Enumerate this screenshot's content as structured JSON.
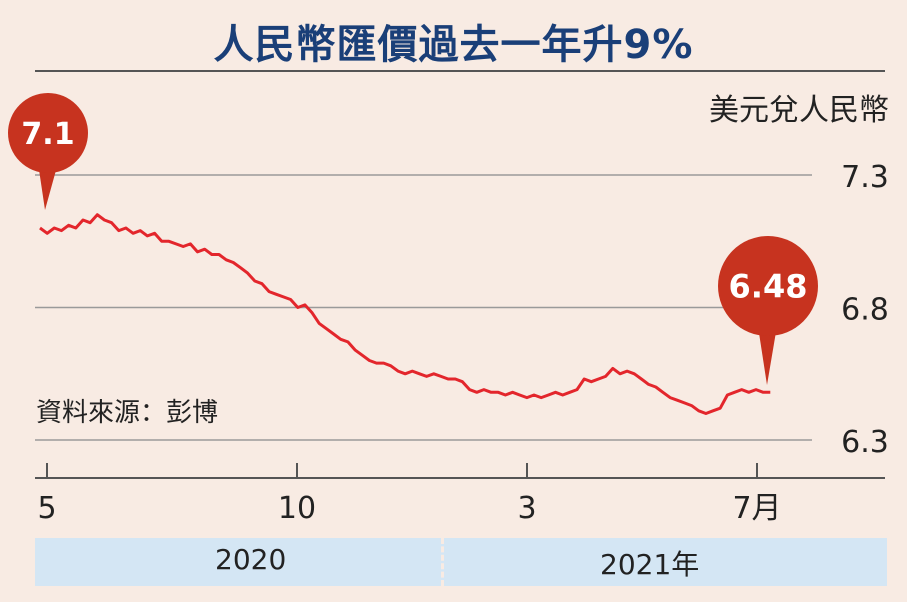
{
  "title": "人民幣匯價過去一年升9%",
  "unit_label": "美元兌人民幣",
  "source": "資料來源：彭博",
  "years": [
    "2020",
    "2021年"
  ],
  "colors": {
    "line": "#e3262c",
    "bubble": "#c7331f",
    "title": "#1a3f78",
    "band": "#d4e6f4"
  },
  "chart_data": {
    "type": "line",
    "title": "人民幣匯價過去一年升9%",
    "ylabel": "美元兌人民幣",
    "ylim": [
      6.3,
      7.3
    ],
    "yticks": [
      "7.3",
      "6.8",
      "6.3"
    ],
    "xticks": [
      "5",
      "10",
      "3",
      "7月"
    ],
    "xlim": [
      0,
      14.3
    ],
    "grid": true,
    "annotations": [
      {
        "label": "7.1",
        "x": 0,
        "y": 7.1
      },
      {
        "label": "6.48",
        "x": 10.2,
        "y": 6.48
      }
    ],
    "series": [
      {
        "x": [
          0,
          0.1,
          0.2,
          0.3,
          0.4,
          0.5,
          0.6,
          0.7,
          0.8,
          0.9,
          1.0,
          1.1,
          1.2,
          1.3,
          1.4,
          1.5,
          1.6,
          1.7,
          1.8,
          1.9,
          2.0,
          2.1,
          2.2,
          2.3,
          2.4,
          2.5,
          2.6,
          2.7,
          2.8,
          2.9,
          3.0,
          3.1,
          3.2,
          3.3,
          3.4,
          3.5,
          3.6,
          3.7,
          3.8,
          3.9,
          4.0,
          4.1,
          4.2,
          4.3,
          4.4,
          4.5,
          4.6,
          4.7,
          4.8,
          4.9,
          5.0,
          5.1,
          5.2,
          5.3,
          5.4,
          5.5,
          5.6,
          5.7,
          5.8,
          5.9,
          6.0,
          6.1,
          6.2,
          6.3,
          6.4,
          6.5,
          6.6,
          6.7,
          6.8,
          6.9,
          7.0,
          7.1,
          7.2,
          7.3,
          7.4,
          7.5,
          7.6,
          7.7,
          7.8,
          7.9,
          8.0,
          8.1,
          8.2,
          8.3,
          8.4,
          8.5,
          8.6,
          8.7,
          8.8,
          8.9,
          9.0,
          9.1,
          9.2,
          9.3,
          9.4,
          9.5,
          9.6,
          9.7,
          9.8,
          9.9,
          10.0,
          10.1,
          10.2
        ],
        "y": [
          7.1,
          7.08,
          7.1,
          7.09,
          7.11,
          7.1,
          7.13,
          7.12,
          7.15,
          7.13,
          7.12,
          7.09,
          7.1,
          7.08,
          7.09,
          7.07,
          7.08,
          7.05,
          7.05,
          7.04,
          7.03,
          7.04,
          7.01,
          7.02,
          7.0,
          7.0,
          6.98,
          6.97,
          6.95,
          6.93,
          6.9,
          6.89,
          6.86,
          6.85,
          6.84,
          6.83,
          6.8,
          6.81,
          6.78,
          6.74,
          6.72,
          6.7,
          6.68,
          6.67,
          6.64,
          6.62,
          6.6,
          6.59,
          6.59,
          6.58,
          6.56,
          6.55,
          6.56,
          6.55,
          6.54,
          6.55,
          6.54,
          6.53,
          6.53,
          6.52,
          6.49,
          6.48,
          6.49,
          6.48,
          6.48,
          6.47,
          6.48,
          6.47,
          6.46,
          6.47,
          6.46,
          6.47,
          6.48,
          6.47,
          6.48,
          6.49,
          6.53,
          6.52,
          6.53,
          6.54,
          6.57,
          6.55,
          6.56,
          6.55,
          6.53,
          6.51,
          6.5,
          6.48,
          6.46,
          6.45,
          6.44,
          6.43,
          6.41,
          6.4,
          6.41,
          6.42,
          6.47,
          6.48,
          6.49,
          6.48,
          6.49,
          6.48,
          6.48
        ]
      }
    ]
  }
}
